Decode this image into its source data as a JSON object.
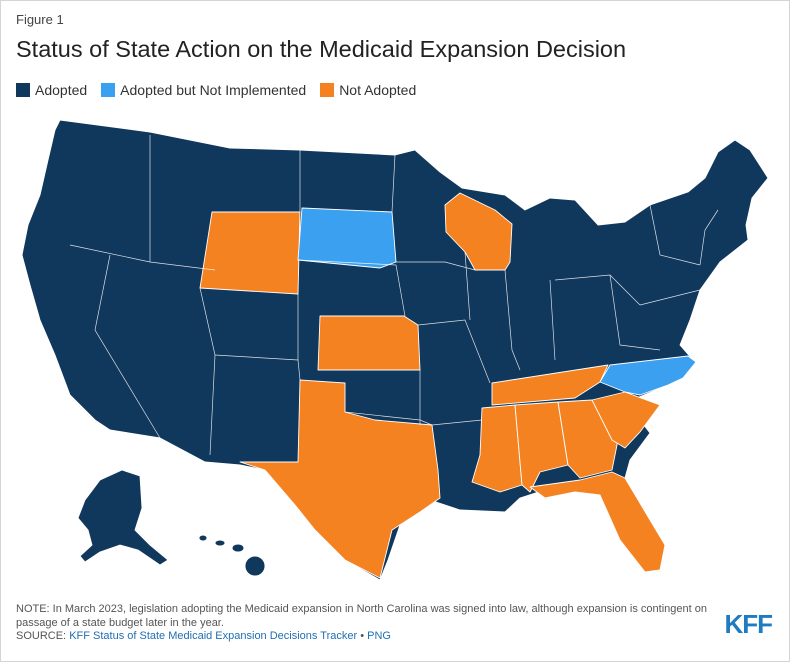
{
  "figure_label": "Figure 1",
  "title": "Status of State Action on the Medicaid Expansion Decision",
  "legend": [
    {
      "label": "Adopted",
      "color": "#10375c"
    },
    {
      "label": "Adopted but Not Implemented",
      "color": "#3aa0ef"
    },
    {
      "label": "Not Adopted",
      "color": "#f58220"
    }
  ],
  "colors": {
    "adopted": "#10375c",
    "adopted_not_implemented": "#3aa0ef",
    "not_adopted": "#f58220",
    "border": "#ffffff"
  },
  "state_status": {
    "not_adopted": [
      "Wyoming",
      "Kansas",
      "Wisconsin",
      "Texas",
      "Tennessee",
      "Mississippi",
      "Alabama",
      "Georgia",
      "South Carolina",
      "Florida"
    ],
    "adopted_not_implemented": [
      "South Dakota",
      "North Carolina"
    ]
  },
  "note": "NOTE: In March 2023, legislation adopting the Medicaid expansion in North Carolina was signed into law, although expansion is contingent on passage of a state budget later in the year.",
  "source": {
    "prefix": "SOURCE: ",
    "link_text": "KFF Status of State Medicaid Expansion Decisions Tracker",
    "separator": " • ",
    "format": "PNG"
  },
  "logo_text": "KFF"
}
